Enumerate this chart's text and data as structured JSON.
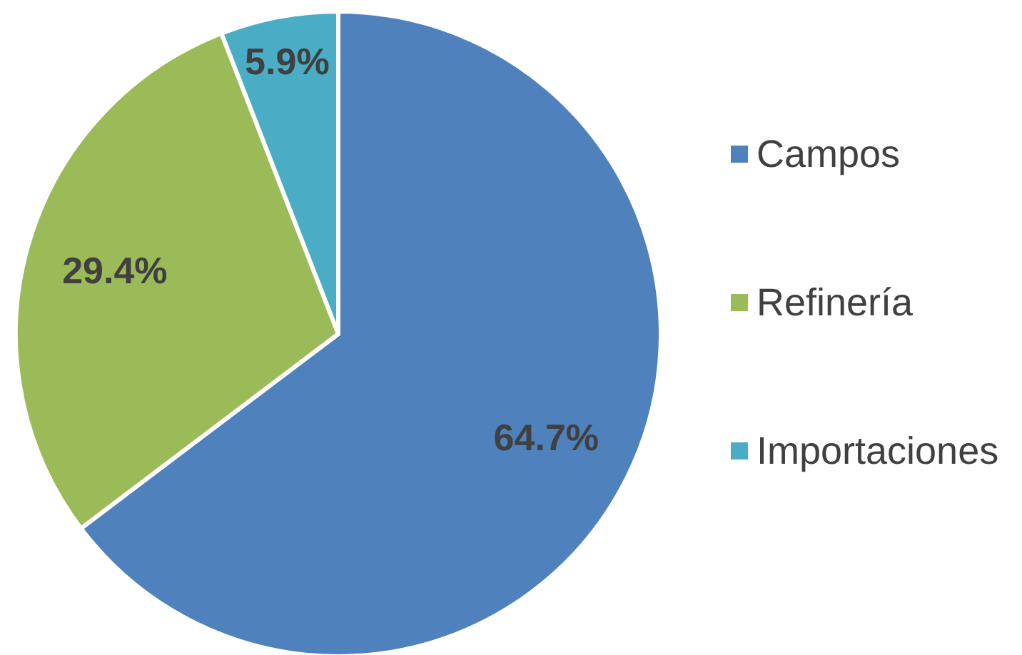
{
  "chart_data": {
    "type": "pie",
    "categories": [
      "Campos",
      "Refinería",
      "Importaciones"
    ],
    "values": [
      64.7,
      29.4,
      5.9
    ],
    "colors": [
      "#4f81bd",
      "#9bbb59",
      "#4bacc6"
    ],
    "value_labels": [
      "64.7%",
      "29.4%",
      "5.9%"
    ],
    "legend": "right"
  }
}
